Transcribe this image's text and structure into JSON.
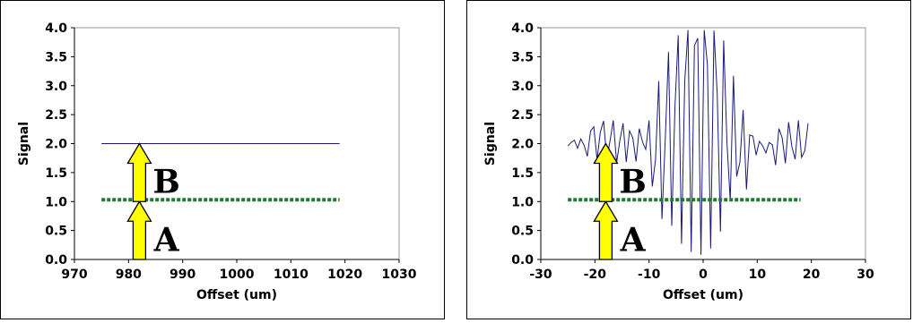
{
  "chart_data": [
    {
      "type": "line",
      "xlabel": "Offset (um)",
      "ylabel": "Signal",
      "xlim": [
        970,
        1030
      ],
      "ylim": [
        0,
        4
      ],
      "x_ticks": [
        "970",
        "980",
        "990",
        "1000",
        "1010",
        "1020",
        "1030"
      ],
      "y_ticks": [
        "0.0",
        "0.5",
        "1.0",
        "1.5",
        "2.0",
        "2.5",
        "3.0",
        "3.5",
        "4.0"
      ],
      "grid": false,
      "legend": "none",
      "series": [
        {
          "x": [
            975,
            1019
          ],
          "y": [
            2.0,
            2.0
          ],
          "color": "#1a1a7a",
          "style": "solid"
        },
        {
          "x": [
            975,
            1019
          ],
          "y": [
            1.03,
            1.03
          ],
          "color": "#1e7a2e",
          "style": "dotted"
        }
      ],
      "arrows": [
        {
          "x": 982,
          "from": 0,
          "to": 1.0,
          "color": "#ffff00"
        },
        {
          "x": 982,
          "from": 1.0,
          "to": 2.0,
          "color": "#ffff00"
        }
      ],
      "annotations": [
        {
          "text": "A",
          "x": 987,
          "y": 0.35
        },
        {
          "text": "B",
          "x": 987,
          "y": 1.35
        }
      ]
    },
    {
      "type": "line",
      "xlabel": "Offset (um)",
      "ylabel": "Signal",
      "xlim": [
        -30,
        30
      ],
      "ylim": [
        0,
        4
      ],
      "x_ticks": [
        "-30",
        "-20",
        "-10",
        "0",
        "10",
        "20",
        "30"
      ],
      "y_ticks": [
        "0.0",
        "0.5",
        "1.0",
        "1.5",
        "2.0",
        "2.5",
        "3.0",
        "3.5",
        "4.0"
      ],
      "grid": false,
      "legend": "none",
      "series": [
        {
          "color": "#1a1a7a",
          "style": "solid",
          "x": [
            -25,
            -24.4,
            -23.8,
            -23.2,
            -22.6,
            -22,
            -21.4,
            -20.8,
            -20.2,
            -19.6,
            -19,
            -18.4,
            -17.8,
            -17.2,
            -16.6,
            -16,
            -15.4,
            -14.8,
            -14.2,
            -13.6,
            -13,
            -12.4,
            -11.8,
            -11.2,
            -10.6,
            -10,
            -9.4,
            -8.8,
            -8.2,
            -7.6,
            -7,
            -6.4,
            -5.8,
            -5.2,
            -4.6,
            -4,
            -3.4,
            -2.8,
            -2.2,
            -1.6,
            -1,
            -0.4,
            0.2,
            0.8,
            1.4,
            2,
            2.6,
            3.2,
            3.8,
            4.4,
            5,
            5.6,
            6.2,
            6.8,
            7.4,
            8,
            8.6,
            9.2,
            9.8,
            10.4,
            11,
            11.6,
            12.2,
            12.8,
            13.4,
            14,
            14.6,
            15.2,
            15.8,
            16.4,
            17,
            17.6,
            18.2,
            18.8,
            19.4
          ],
          "y": [
            1.96,
            2.02,
            2.06,
            1.92,
            2.08,
            1.97,
            1.78,
            2.22,
            2.29,
            1.72,
            2.2,
            2.39,
            1.72,
            2.05,
            2.4,
            1.67,
            2.05,
            2.35,
            1.68,
            2.22,
            2.1,
            1.69,
            2.26,
            2.03,
            1.9,
            2.4,
            1.26,
            1.72,
            3.08,
            0.7,
            2.09,
            3.58,
            0.58,
            2.64,
            3.87,
            0.27,
            3.08,
            3.96,
            0.13,
            3.69,
            3.82,
            0.08,
            3.96,
            3.36,
            0.19,
            3.95,
            2.86,
            0.48,
            3.78,
            2.04,
            1.01,
            3.17,
            1.43,
            1.68,
            2.58,
            1.21,
            2.15,
            2.13,
            1.8,
            2.04,
            1.96,
            1.84,
            2.02,
            1.98,
            1.63,
            2.26,
            2.1,
            1.66,
            2.37,
            1.95,
            1.73,
            2.4,
            1.76,
            1.88,
            2.35
          ]
        },
        {
          "x": [
            -25,
            18
          ],
          "y": [
            1.03,
            1.03
          ],
          "color": "#1e7a2e",
          "style": "dotted"
        }
      ],
      "arrows": [
        {
          "x": -18,
          "from": 0,
          "to": 1.0,
          "color": "#ffff00"
        },
        {
          "x": -18,
          "from": 1.0,
          "to": 2.0,
          "color": "#ffff00"
        }
      ],
      "annotations": [
        {
          "text": "A",
          "x": -13,
          "y": 0.35
        },
        {
          "text": "B",
          "x": -13,
          "y": 1.35
        }
      ]
    }
  ]
}
